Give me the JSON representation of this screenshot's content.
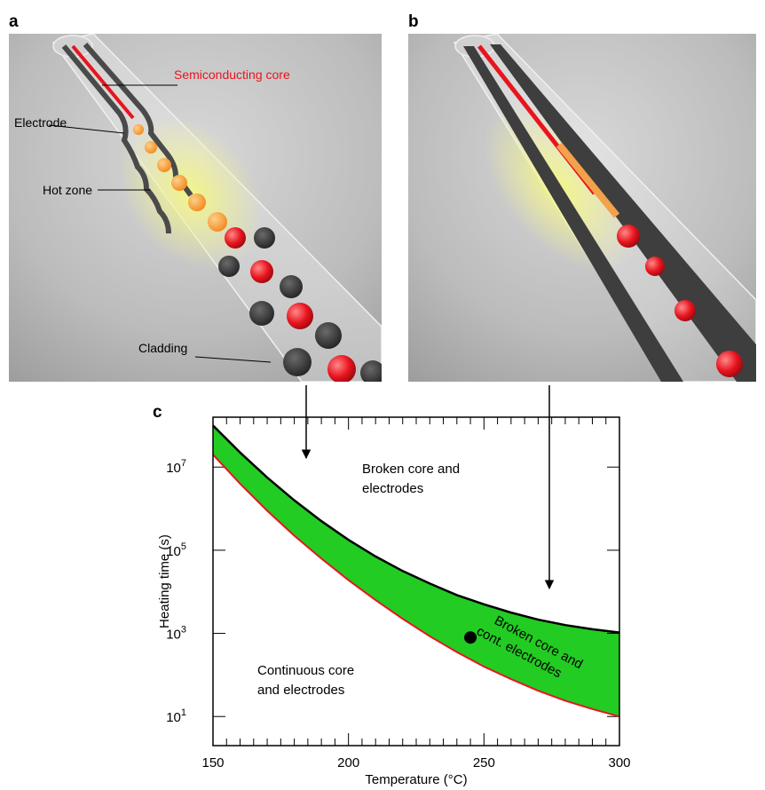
{
  "panels": {
    "a": {
      "letter": "a",
      "labels": {
        "core": "Semiconducting core",
        "electrode": "Electrode",
        "hot_zone": "Hot zone",
        "cladding": "Cladding"
      }
    },
    "b": {
      "letter": "b"
    },
    "c": {
      "letter": "c"
    }
  },
  "colors": {
    "core_red": "#e8141e",
    "band_green": "#22cc22",
    "hot_yellow": "#eef27a",
    "electrode_gray": "#3a3a3a"
  },
  "chart_data": {
    "type": "area",
    "xlabel": "Temperature (°C)",
    "ylabel": "Heating time (s)",
    "xlim": [
      150,
      300
    ],
    "ylim_log10": [
      0.3,
      8.2
    ],
    "y_scale": "log",
    "x_ticks": [
      150,
      200,
      250,
      300
    ],
    "y_ticks": [
      {
        "exp": 1,
        "base": "10",
        "sup": "1"
      },
      {
        "exp": 3,
        "base": "10",
        "sup": "3"
      },
      {
        "exp": 5,
        "base": "10",
        "sup": "5"
      },
      {
        "exp": 7,
        "base": "10",
        "sup": "7"
      }
    ],
    "series": [
      {
        "color": "#000000",
        "x": [
          150,
          160,
          170,
          180,
          190,
          200,
          210,
          220,
          230,
          240,
          250,
          260,
          270,
          280,
          290,
          300
        ],
        "log10_y": [
          8.0,
          7.35,
          6.75,
          6.2,
          5.7,
          5.25,
          4.85,
          4.5,
          4.2,
          3.92,
          3.7,
          3.5,
          3.33,
          3.2,
          3.1,
          3.02
        ]
      },
      {
        "color": "#e8141e",
        "x": [
          150,
          160,
          170,
          180,
          190,
          200,
          210,
          220,
          230,
          240,
          250,
          260,
          270,
          280,
          290,
          300
        ],
        "log10_y": [
          7.3,
          6.6,
          5.95,
          5.35,
          4.8,
          4.28,
          3.8,
          3.35,
          2.93,
          2.55,
          2.2,
          1.9,
          1.62,
          1.38,
          1.18,
          1.0
        ]
      }
    ],
    "point": {
      "x": 245,
      "log10_y": 2.9
    },
    "regions": {
      "upper": "Broken core and\nelectrodes",
      "band": "Broken core and\ncont. electrodes",
      "lower": "Continuous core\nand electrodes"
    }
  }
}
